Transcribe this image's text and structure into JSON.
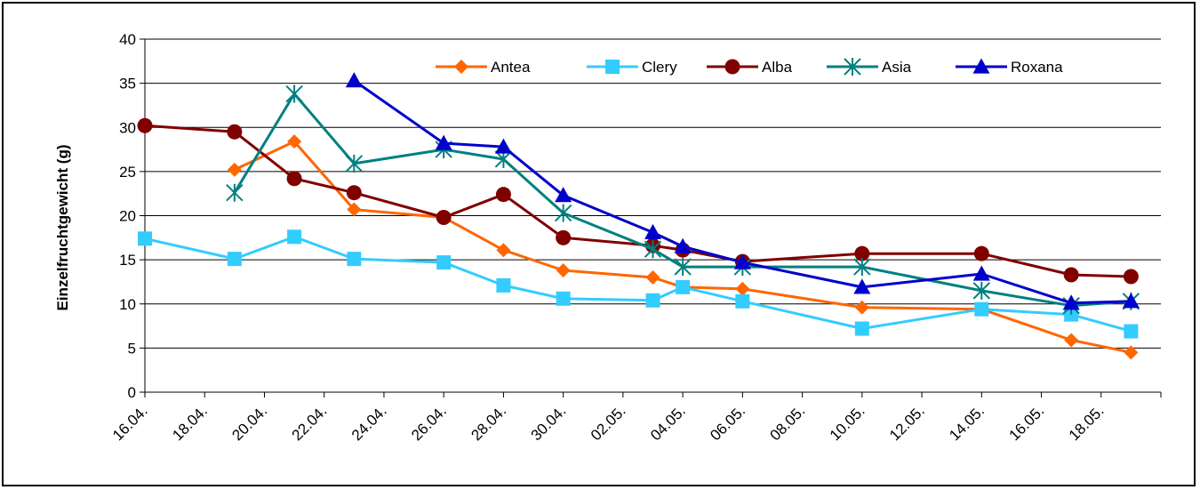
{
  "chart_data": {
    "type": "line",
    "ylabel": "Einzelfruchtgewicht (g)",
    "xlabel": "",
    "title": "",
    "ylim": [
      0,
      40
    ],
    "yticks": [
      "0",
      "5",
      "10",
      "15",
      "20",
      "25",
      "30",
      "35",
      "40"
    ],
    "xticks": [
      "16.04.",
      "18.04.",
      "20.04.",
      "22.04.",
      "24.04.",
      "26.04.",
      "28.04.",
      "30.04.",
      "02.05.",
      "04.05.",
      "06.05.",
      "08.05.",
      "10.05.",
      "12.05.",
      "14.05.",
      "16.05.",
      "18.05."
    ],
    "x_range": [
      "2004-04-16",
      "2004-05-20"
    ],
    "grid": "horizontal",
    "legend_position": "top-right",
    "series": [
      {
        "name": "Antea",
        "color": "#ff6600",
        "marker": "diamond",
        "x": [
          "2004-04-19",
          "2004-04-21",
          "2004-04-23",
          "2004-04-26",
          "2004-04-28",
          "2004-04-30",
          "2004-05-03",
          "2004-05-04",
          "2004-05-06",
          "2004-05-10",
          "2004-05-14",
          "2004-05-17",
          "2004-05-19"
        ],
        "values": [
          25.2,
          28.4,
          20.7,
          19.8,
          16.1,
          13.8,
          13.0,
          11.9,
          11.7,
          9.6,
          9.4,
          5.9,
          4.5
        ]
      },
      {
        "name": "Clery",
        "color": "#33ccff",
        "marker": "square",
        "x": [
          "2004-04-16",
          "2004-04-19",
          "2004-04-21",
          "2004-04-23",
          "2004-04-26",
          "2004-04-28",
          "2004-04-30",
          "2004-05-03",
          "2004-05-04",
          "2004-05-06",
          "2004-05-10",
          "2004-05-14",
          "2004-05-17",
          "2004-05-19"
        ],
        "values": [
          17.4,
          15.1,
          17.6,
          15.1,
          14.7,
          12.1,
          10.6,
          10.4,
          11.9,
          10.3,
          7.2,
          9.4,
          8.8,
          6.9
        ]
      },
      {
        "name": "Alba",
        "color": "#800000",
        "marker": "circle",
        "x": [
          "2004-04-16",
          "2004-04-19",
          "2004-04-21",
          "2004-04-23",
          "2004-04-26",
          "2004-04-28",
          "2004-04-30",
          "2004-05-03",
          "2004-05-04",
          "2004-05-06",
          "2004-05-10",
          "2004-05-14",
          "2004-05-17",
          "2004-05-19"
        ],
        "values": [
          30.2,
          29.5,
          24.2,
          22.6,
          19.8,
          22.4,
          17.5,
          16.6,
          16.1,
          14.8,
          15.7,
          15.7,
          13.3,
          13.1
        ]
      },
      {
        "name": "Asia",
        "color": "#008080",
        "marker": "asterisk",
        "x": [
          "2004-04-19",
          "2004-04-21",
          "2004-04-23",
          "2004-04-26",
          "2004-04-28",
          "2004-04-30",
          "2004-05-03",
          "2004-05-04",
          "2004-05-06",
          "2004-05-10",
          "2004-05-14",
          "2004-05-17",
          "2004-05-19"
        ],
        "values": [
          22.6,
          33.8,
          25.9,
          27.5,
          26.4,
          20.3,
          16.2,
          14.2,
          14.2,
          14.2,
          11.5,
          9.8,
          10.3
        ]
      },
      {
        "name": "Roxana",
        "color": "#0000cc",
        "marker": "triangle",
        "x": [
          "2004-04-23",
          "2004-04-26",
          "2004-04-28",
          "2004-04-30",
          "2004-05-03",
          "2004-05-04",
          "2004-05-06",
          "2004-05-10",
          "2004-05-14",
          "2004-05-17",
          "2004-05-19"
        ],
        "values": [
          35.3,
          28.2,
          27.8,
          22.3,
          18.1,
          16.5,
          14.7,
          11.9,
          13.4,
          10.1,
          10.3
        ]
      }
    ]
  }
}
